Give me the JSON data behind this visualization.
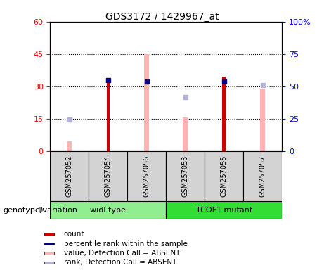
{
  "title": "GDS3172 / 1429967_at",
  "samples": [
    "GSM257052",
    "GSM257054",
    "GSM257056",
    "GSM257053",
    "GSM257055",
    "GSM257057"
  ],
  "count_vals": [
    null,
    32.5,
    null,
    null,
    34.5,
    null
  ],
  "percentile_rank_vals": [
    null,
    55.0,
    54.0,
    null,
    54.0,
    null
  ],
  "value_absent_vals": [
    4.5,
    null,
    45.0,
    15.5,
    null,
    29.0
  ],
  "rank_absent_vals": [
    24.5,
    null,
    null,
    42.0,
    null,
    51.0
  ],
  "ylim_left": [
    0,
    60
  ],
  "ylim_right": [
    0,
    100
  ],
  "yticks_left": [
    0,
    15,
    30,
    45,
    60
  ],
  "yticks_right": [
    0,
    25,
    50,
    75,
    100
  ],
  "ytick_labels_left": [
    "0",
    "15",
    "30",
    "45",
    "60"
  ],
  "ytick_labels_right": [
    "0",
    "25",
    "50",
    "75",
    "100%"
  ],
  "color_count": "#cc0000",
  "color_percentile": "#00008B",
  "color_value_absent": "#ffb3b3",
  "color_rank_absent": "#b3b3d9",
  "group_wt_label": "widl type",
  "group_mut_label": "TCOF1 mutant",
  "group_color_wt": "#90EE90",
  "group_color_mut": "#33dd33",
  "legend_items": [
    {
      "label": "count",
      "color": "#cc0000"
    },
    {
      "label": "percentile rank within the sample",
      "color": "#00008B"
    },
    {
      "label": "value, Detection Call = ABSENT",
      "color": "#ffb3b3"
    },
    {
      "label": "rank, Detection Call = ABSENT",
      "color": "#b3b3d9"
    }
  ]
}
